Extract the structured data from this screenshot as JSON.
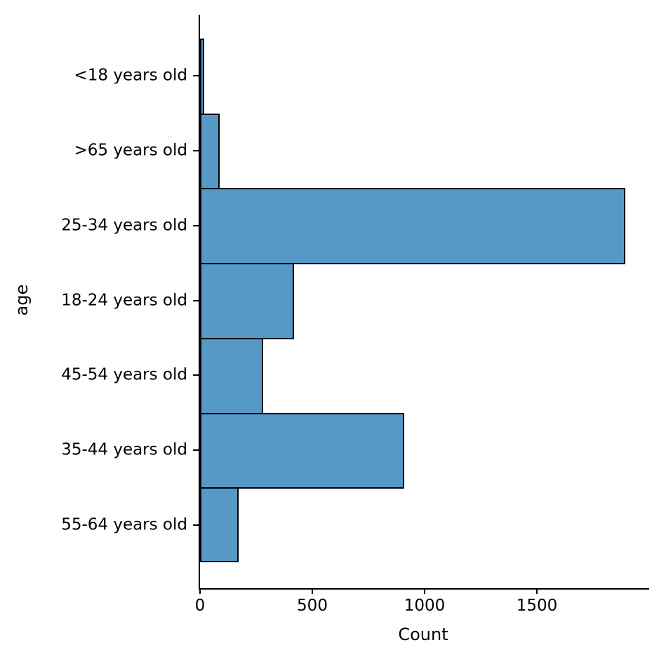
{
  "chart_data": {
    "type": "bar",
    "orientation": "horizontal",
    "title": "",
    "xlabel": "Count",
    "ylabel": "age",
    "categories": [
      "<18 years old",
      ">65 years old",
      "25-34 years old",
      "18-24 years old",
      "45-54 years old",
      "35-44 years old",
      "55-64 years old"
    ],
    "values": [
      20,
      88,
      1895,
      418,
      282,
      910,
      173
    ],
    "xlim": [
      0,
      2000
    ],
    "xticks": [
      0,
      500,
      1000,
      1500
    ],
    "grid": false,
    "legend_position": "none",
    "colors": {
      "bar_fill": "#5799C6",
      "bar_edge": "#000000",
      "axis": "#000000",
      "text": "#000000"
    }
  }
}
